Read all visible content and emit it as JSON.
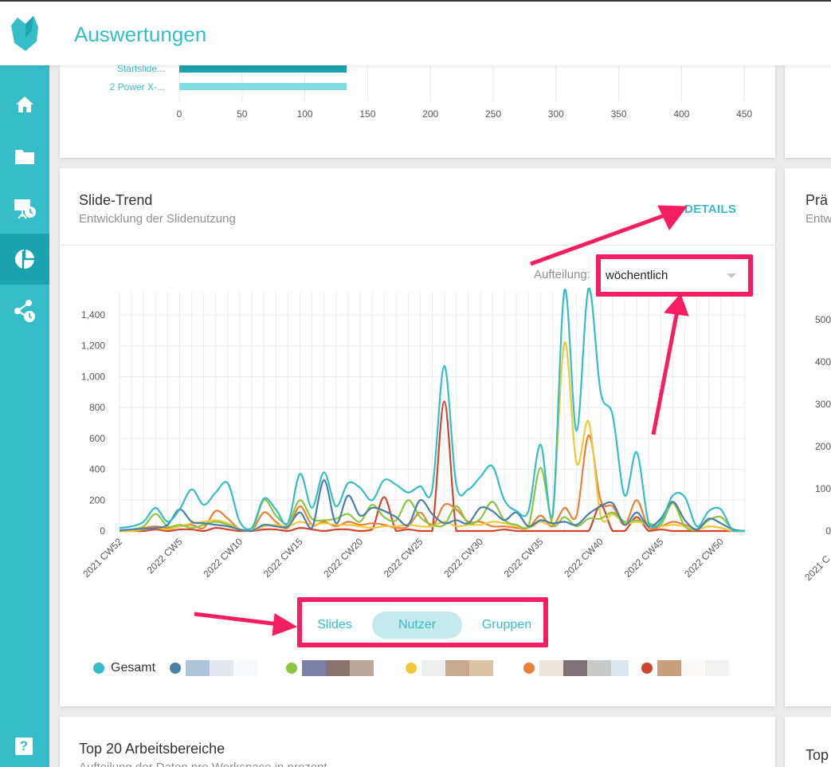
{
  "app": {
    "title": "Auswertungen"
  },
  "sidebar": {
    "items": [
      {
        "name": "home",
        "icon": "home-icon"
      },
      {
        "name": "folder",
        "icon": "folder-icon"
      },
      {
        "name": "presentation",
        "icon": "presentation-icon"
      },
      {
        "name": "analytics",
        "icon": "pie-chart-icon",
        "active": true
      },
      {
        "name": "share",
        "icon": "share-clock-icon"
      }
    ],
    "help_label": "?"
  },
  "top_chart": {
    "rows": [
      {
        "label": "Startslide...",
        "value": 133
      },
      {
        "label": "2 Power X-...",
        "value": 133
      }
    ],
    "ticks": [
      "0",
      "50",
      "100",
      "150",
      "200",
      "250",
      "300",
      "350",
      "400",
      "450"
    ]
  },
  "slide_trend": {
    "title": "Slide-Trend",
    "subtitle": "Entwicklung der Slidenutzung",
    "details_label": "DETAILS",
    "aufteilung_label": "Aufteilung:",
    "aufteilung_value": "wöchentlich",
    "toggles": {
      "slides": "Slides",
      "nutzer": "Nutzer",
      "gruppen": "Gruppen",
      "active": "Nutzer"
    },
    "legend": {
      "gesamt": "Gesamt"
    }
  },
  "right_card": {
    "title": "Prä",
    "subtitle": "Entw",
    "ticks": [
      "500",
      "400",
      "300",
      "200",
      "100",
      "0"
    ],
    "x_label": "2021 C"
  },
  "bottom_card": {
    "title": "Top 20 Arbeitsbereiche",
    "subtitle": "Aufteilung der Daten pro Workspace in prozent",
    "right_title": "Top"
  },
  "colors": {
    "accent": "#35bdc8",
    "highlight": "#f51e63",
    "series": [
      "#35bdc8",
      "#4a7fa7",
      "#8cc53f",
      "#f0c93a",
      "#e8823b",
      "#d0452e"
    ]
  },
  "chart_data": {
    "type": "line",
    "ylim": [
      0,
      1550
    ],
    "y_ticks": [
      "0",
      "200",
      "400",
      "600",
      "800",
      "1,000",
      "1,200",
      "1,400"
    ],
    "x_labels": [
      "2021 CW52",
      "2022 CW5",
      "2022 CW10",
      "2022 CW15",
      "2022 CW20",
      "2022 CW25",
      "2022 CW30",
      "2022 CW35",
      "2022 CW40",
      "2022 CW45",
      "2022 CW50"
    ],
    "categories": [
      "2021 CW52",
      "2022 CW1",
      "2022 CW2",
      "2022 CW3",
      "2022 CW4",
      "2022 CW5",
      "2022 CW6",
      "2022 CW7",
      "2022 CW8",
      "2022 CW9",
      "2022 CW10",
      "2022 CW11",
      "2022 CW12",
      "2022 CW13",
      "2022 CW14",
      "2022 CW15",
      "2022 CW16",
      "2022 CW17",
      "2022 CW18",
      "2022 CW19",
      "2022 CW20",
      "2022 CW21",
      "2022 CW22",
      "2022 CW23",
      "2022 CW24",
      "2022 CW25",
      "2022 CW26",
      "2022 CW27",
      "2022 CW28",
      "2022 CW29",
      "2022 CW30",
      "2022 CW31",
      "2022 CW32",
      "2022 CW33",
      "2022 CW34",
      "2022 CW35",
      "2022 CW36",
      "2022 CW37",
      "2022 CW38",
      "2022 CW39",
      "2022 CW40",
      "2022 CW41",
      "2022 CW42",
      "2022 CW43",
      "2022 CW44",
      "2022 CW45",
      "2022 CW46",
      "2022 CW47",
      "2022 CW48",
      "2022 CW49",
      "2022 CW50",
      "2022 CW51",
      "2022 CW52"
    ],
    "series": [
      {
        "name": "Gesamt",
        "color": "#35bdc8",
        "values": [
          20,
          30,
          60,
          150,
          60,
          140,
          270,
          170,
          250,
          310,
          60,
          20,
          210,
          140,
          50,
          370,
          150,
          380,
          160,
          310,
          280,
          200,
          330,
          300,
          250,
          290,
          270,
          1070,
          300,
          270,
          350,
          420,
          200,
          130,
          130,
          560,
          100,
          1560,
          650,
          1570,
          900,
          750,
          230,
          510,
          50,
          60,
          230,
          220,
          30,
          130,
          140,
          0,
          0
        ]
      },
      {
        "name": "",
        "color": "#4a7fa7",
        "values": [
          5,
          10,
          15,
          20,
          40,
          140,
          60,
          50,
          40,
          30,
          10,
          0,
          40,
          30,
          30,
          120,
          20,
          330,
          50,
          230,
          100,
          150,
          130,
          90,
          40,
          200,
          110,
          50,
          70,
          50,
          150,
          130,
          70,
          120,
          30,
          70,
          50,
          60,
          40,
          110,
          160,
          180,
          40,
          120,
          30,
          80,
          190,
          70,
          10,
          80,
          50,
          10,
          0
        ]
      },
      {
        "name": "",
        "color": "#8cc53f",
        "values": [
          0,
          10,
          30,
          110,
          30,
          40,
          20,
          40,
          60,
          40,
          10,
          0,
          200,
          100,
          50,
          200,
          80,
          70,
          80,
          110,
          60,
          170,
          90,
          70,
          200,
          90,
          40,
          40,
          160,
          50,
          80,
          190,
          70,
          40,
          30,
          410,
          40,
          90,
          30,
          80,
          80,
          120,
          60,
          70,
          50,
          40,
          180,
          30,
          10,
          70,
          90,
          10,
          0
        ]
      },
      {
        "name": "",
        "color": "#f0c93a",
        "values": [
          0,
          0,
          10,
          20,
          10,
          30,
          50,
          60,
          70,
          50,
          10,
          0,
          30,
          40,
          30,
          60,
          40,
          50,
          40,
          40,
          30,
          20,
          30,
          30,
          40,
          30,
          30,
          60,
          30,
          40,
          40,
          60,
          50,
          30,
          20,
          60,
          80,
          1220,
          440,
          710,
          100,
          110,
          50,
          60,
          40,
          30,
          40,
          30,
          10,
          30,
          20,
          0,
          0
        ]
      },
      {
        "name": "",
        "color": "#e8823b",
        "values": [
          0,
          0,
          20,
          30,
          20,
          30,
          40,
          20,
          130,
          80,
          10,
          0,
          120,
          60,
          20,
          160,
          40,
          60,
          30,
          60,
          40,
          50,
          40,
          20,
          30,
          120,
          30,
          170,
          140,
          60,
          60,
          30,
          30,
          20,
          20,
          100,
          30,
          150,
          100,
          620,
          200,
          160,
          40,
          200,
          20,
          30,
          60,
          40,
          10,
          30,
          20,
          0,
          0
        ]
      },
      {
        "name": "",
        "color": "#d0452e",
        "values": [
          0,
          0,
          0,
          10,
          0,
          10,
          10,
          0,
          20,
          10,
          0,
          0,
          10,
          10,
          0,
          20,
          10,
          0,
          10,
          10,
          0,
          10,
          220,
          0,
          10,
          0,
          0,
          840,
          0,
          0,
          0,
          0,
          10,
          0,
          0,
          0,
          0,
          0,
          0,
          0,
          170,
          0,
          0,
          90,
          0,
          10,
          0,
          0,
          0,
          0,
          0,
          0,
          0
        ]
      }
    ]
  }
}
